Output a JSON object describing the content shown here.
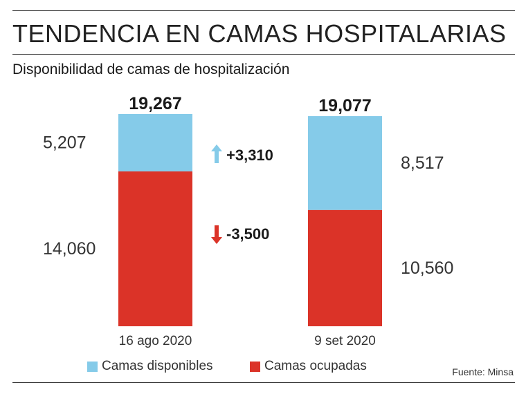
{
  "header": {
    "title": "TENDENCIA EN CAMAS HOSPITALARIAS",
    "subtitle": "Disponibilidad de camas de hospitalización"
  },
  "colors": {
    "disponibles": "#85CBE9",
    "ocupadas": "#DB3328",
    "arrow_up": "#85CBE9",
    "arrow_down": "#DB3328"
  },
  "chart_data": {
    "type": "bar",
    "stacked": true,
    "categories": [
      "16 ago 2020",
      "9 set 2020"
    ],
    "series": [
      {
        "name": "Camas ocupadas",
        "values": [
          14060,
          10560
        ],
        "labels": [
          "14,060",
          "10,560"
        ]
      },
      {
        "name": "Camas disponibles",
        "values": [
          5207,
          8517
        ],
        "labels": [
          "5,207",
          "8,517"
        ]
      }
    ],
    "totals": [
      19267,
      19077
    ],
    "total_labels": [
      "19,267",
      "19,077"
    ],
    "changes": [
      {
        "value": 3310,
        "label": "+3,310",
        "direction": "up",
        "icon": "arrow-up-icon"
      },
      {
        "value": -3500,
        "label": "-3,500",
        "direction": "down",
        "icon": "arrow-down-icon"
      }
    ],
    "legend": [
      "Camas disponibles",
      "Camas ocupadas"
    ],
    "legend_position": "bottom",
    "grid": false
  },
  "footer": {
    "source": "Fuente: Minsa"
  }
}
